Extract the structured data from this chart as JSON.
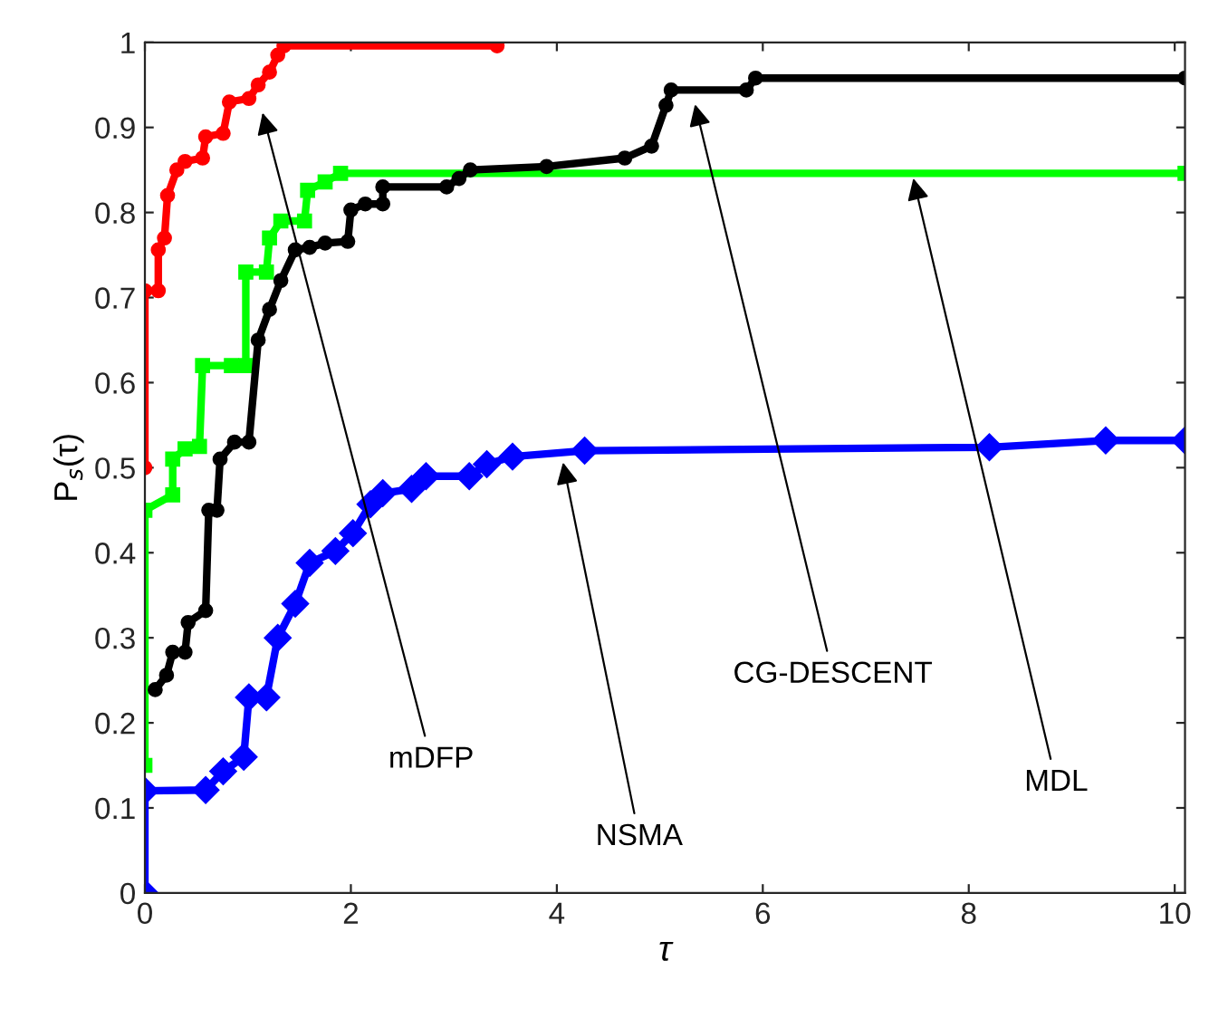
{
  "chart_data": {
    "type": "line",
    "xlabel": "τ",
    "ylabel": "P$_{s}$(τ)",
    "xlim": [
      0,
      10.1
    ],
    "ylim": [
      0,
      1
    ],
    "xticks": [
      0,
      2,
      4,
      6,
      8,
      10
    ],
    "yticks": [
      0,
      0.1,
      0.2,
      0.3,
      0.4,
      0.5,
      0.6,
      0.7,
      0.8,
      0.9,
      1
    ],
    "grid": false,
    "legend": false,
    "line_style": "solid",
    "series": [
      {
        "color": "#0000ff",
        "marker": "diamond",
        "x": [
          0,
          0,
          0.59,
          0.76,
          0.96,
          1.01,
          1.18,
          1.29,
          1.46,
          1.6,
          1.85,
          2.02,
          2.19,
          2.31,
          2.59,
          2.73,
          3.15,
          3.32,
          3.57,
          4.27,
          8.2,
          9.33,
          10.1
        ],
        "values": [
          0,
          0.12,
          0.121,
          0.143,
          0.16,
          0.23,
          0.23,
          0.3,
          0.34,
          0.388,
          0.402,
          0.423,
          0.457,
          0.47,
          0.475,
          0.49,
          0.49,
          0.504,
          0.513,
          0.52,
          0.524,
          0.532,
          0.532
        ]
      },
      {
        "color": "#00ff00",
        "marker": "square",
        "x": [
          0,
          0,
          0.27,
          0.27,
          0.39,
          0.53,
          0.56,
          0.84,
          0.98,
          0.98,
          1.18,
          1.21,
          1.32,
          1.55,
          1.58,
          1.75,
          1.9,
          10.1
        ],
        "values": [
          0.15,
          0.45,
          0.468,
          0.51,
          0.522,
          0.525,
          0.62,
          0.62,
          0.62,
          0.73,
          0.73,
          0.77,
          0.79,
          0.79,
          0.826,
          0.836,
          0.846,
          0.846
        ]
      },
      {
        "color": "#000000",
        "marker": "circle",
        "x": [
          0.1,
          0.21,
          0.27,
          0.39,
          0.42,
          0.59,
          0.62,
          0.7,
          0.73,
          0.87,
          1.01,
          1.1,
          1.21,
          1.32,
          1.46,
          1.6,
          1.75,
          1.97,
          2.0,
          2.14,
          2.31,
          2.31,
          2.93,
          3.05,
          3.16,
          3.9,
          4.66,
          4.92,
          5.06,
          5.11,
          5.84,
          5.93,
          10.1
        ],
        "values": [
          0.239,
          0.256,
          0.283,
          0.283,
          0.318,
          0.332,
          0.45,
          0.45,
          0.51,
          0.53,
          0.53,
          0.65,
          0.686,
          0.72,
          0.756,
          0.759,
          0.764,
          0.766,
          0.803,
          0.81,
          0.81,
          0.83,
          0.83,
          0.84,
          0.85,
          0.854,
          0.864,
          0.878,
          0.926,
          0.944,
          0.944,
          0.958,
          0.958
        ]
      },
      {
        "color": "#ff0000",
        "marker": "circle",
        "x": [
          0,
          0,
          0.13,
          0.13,
          0.19,
          0.22,
          0.31,
          0.39,
          0.56,
          0.59,
          0.76,
          0.82,
          1.01,
          1.1,
          1.21,
          1.29,
          1.35,
          3.42
        ],
        "values": [
          0.5,
          0.708,
          0.708,
          0.756,
          0.77,
          0.82,
          0.85,
          0.86,
          0.864,
          0.889,
          0.893,
          0.93,
          0.934,
          0.95,
          0.965,
          0.985,
          0.996,
          0.996
        ]
      }
    ],
    "annotations": [
      {
        "text": "mDFP",
        "x": 1.13,
        "y": 0.923
      },
      {
        "text": "NSMA",
        "x": 4.05,
        "y": 0.512
      },
      {
        "text": "CG-DESCENT",
        "x": 5.33,
        "y": 0.933
      },
      {
        "text": "MDL",
        "x": 7.45,
        "y": 0.846
      }
    ]
  }
}
